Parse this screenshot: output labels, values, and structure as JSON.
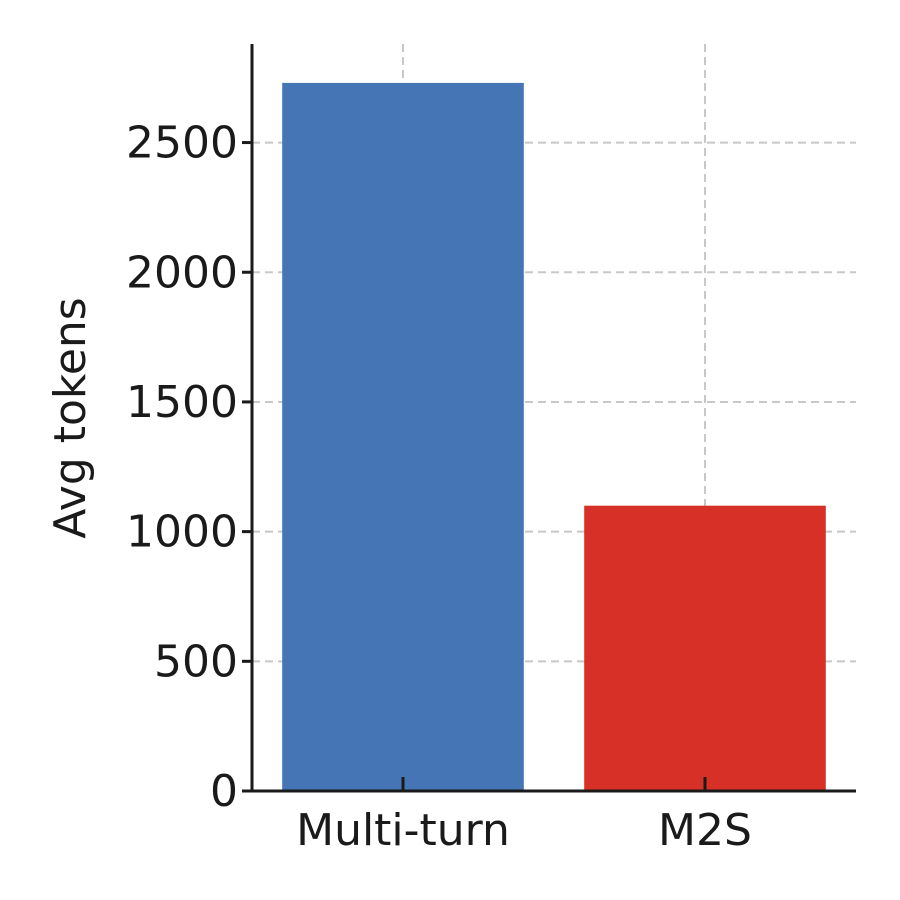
{
  "chart_data": {
    "type": "bar",
    "categories": [
      "Multi-turn",
      "M2S"
    ],
    "values": [
      2730,
      1100
    ],
    "colors": [
      "#4575b4",
      "#d73027"
    ],
    "title": "",
    "xlabel": "",
    "ylabel": "Avg tokens",
    "ylim": [
      0,
      2880
    ],
    "yticks": [
      0,
      500,
      1000,
      1500,
      2000,
      2500
    ],
    "grid": true,
    "grid_style": "dashed",
    "axis_color": "#1a1a1a",
    "grid_color": "#c8c8c8"
  }
}
